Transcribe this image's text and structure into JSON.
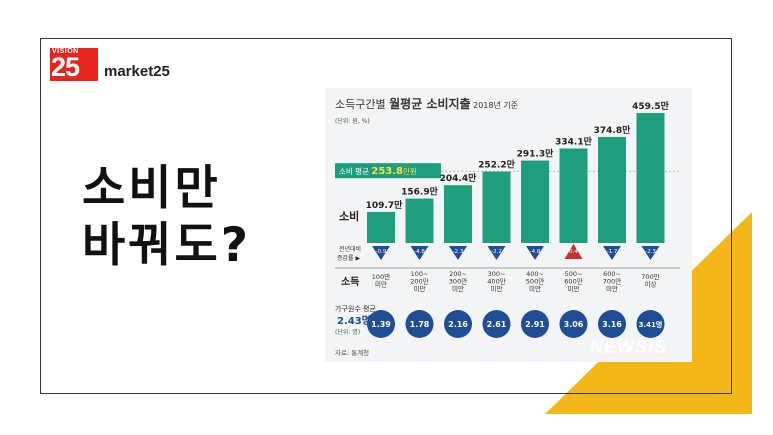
{
  "logo": {
    "top": "VISION",
    "number": "25",
    "brand": "market25"
  },
  "headline": {
    "line1": "소비만",
    "line2": "바꿔도?"
  },
  "chart_data": {
    "type": "bar",
    "title_prefix": "소득구간별",
    "title_main": "월평균 소비지출",
    "title_year": "2018년 기준",
    "unit": "(단위: 원, %)",
    "avg_label": "소비 평균",
    "avg_value": "253.8",
    "avg_suffix": "만원",
    "row_consumption": "소비",
    "row_change": [
      "전년대비",
      "증감률 ▶"
    ],
    "row_income": "소득",
    "household_label": "가구원수 평균",
    "household_avg": "2.43명",
    "household_unit": "(단위: 명)",
    "source": "자료: 통계청",
    "watermark": "NEWSIS",
    "categories": [
      [
        "100만",
        "미만"
      ],
      [
        "100~",
        "200만",
        "미만"
      ],
      [
        "200~",
        "300만",
        "미만"
      ],
      [
        "300~",
        "400만",
        "미만"
      ],
      [
        "400~",
        "500만",
        "미만"
      ],
      [
        "500~",
        "600만",
        "미만"
      ],
      [
        "600~",
        "700만",
        "미만"
      ],
      [
        "700만",
        "이상"
      ]
    ],
    "values": [
      109.7,
      156.9,
      204.4,
      252.2,
      291.3,
      334.1,
      374.8,
      459.5
    ],
    "value_labels": [
      "109.7만",
      "156.9만",
      "204.4만",
      "252.2만",
      "291.3만",
      "334.1만",
      "374.8만",
      "459.5만"
    ],
    "change": [
      -0.9,
      -4.8,
      -2.3,
      -2.2,
      -4.8,
      0.4,
      -1.7,
      -2.3
    ],
    "change_labels": [
      "-0.9",
      "-4.8",
      "-2.3",
      "-2.2",
      "-4.8",
      "0.4",
      "-1.7",
      "-2.3"
    ],
    "household": [
      "1.39",
      "1.78",
      "2.16",
      "2.61",
      "2.91",
      "3.06",
      "3.16",
      "3.41명"
    ],
    "ylim": [
      0,
      470
    ],
    "colors": {
      "bar": "#1f9e7e",
      "bar_light": "#3bb592",
      "down": "#1f4e96",
      "up": "#c0332e",
      "circle": "#1f4e96",
      "avg_box": "#1f9e7e",
      "avg_value": "#f3e23b"
    }
  }
}
